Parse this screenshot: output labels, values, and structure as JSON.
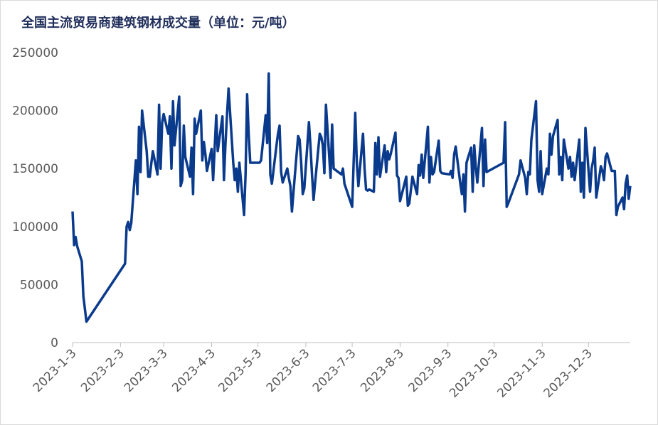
{
  "chart_data": {
    "type": "line",
    "title": "全国主流贸易商建筑钢材成交量（单位：元/吨）",
    "x": [
      "2023-1-3",
      "2023-1-4",
      "2023-1-5",
      "2023-1-6",
      "2023-1-9",
      "2023-1-10",
      "2023-1-12",
      "2023-2-6",
      "2023-2-7",
      "2023-2-8",
      "2023-2-9",
      "2023-2-10",
      "2023-2-13",
      "2023-2-14",
      "2023-2-15",
      "2023-2-16",
      "2023-2-17",
      "2023-2-20",
      "2023-2-21",
      "2023-2-22",
      "2023-2-23",
      "2023-2-24",
      "2023-2-27",
      "2023-2-28",
      "2023-3-1",
      "2023-3-2",
      "2023-3-3",
      "2023-3-6",
      "2023-3-7",
      "2023-3-8",
      "2023-3-9",
      "2023-3-10",
      "2023-3-13",
      "2023-3-14",
      "2023-3-15",
      "2023-3-16",
      "2023-3-17",
      "2023-3-20",
      "2023-3-21",
      "2023-3-22",
      "2023-3-23",
      "2023-3-24",
      "2023-3-27",
      "2023-3-28",
      "2023-3-29",
      "2023-3-30",
      "2023-3-31",
      "2023-4-3",
      "2023-4-4",
      "2023-4-6",
      "2023-4-7",
      "2023-4-10",
      "2023-4-11",
      "2023-4-12",
      "2023-4-13",
      "2023-4-14",
      "2023-4-17",
      "2023-4-18",
      "2023-4-19",
      "2023-4-20",
      "2023-4-21",
      "2023-4-24",
      "2023-4-25",
      "2023-4-26",
      "2023-4-27",
      "2023-4-28",
      "2023-5-4",
      "2023-5-5",
      "2023-5-8",
      "2023-5-9",
      "2023-5-10",
      "2023-5-11",
      "2023-5-12",
      "2023-5-15",
      "2023-5-16",
      "2023-5-17",
      "2023-5-18",
      "2023-5-19",
      "2023-5-22",
      "2023-5-23",
      "2023-5-24",
      "2023-5-25",
      "2023-5-26",
      "2023-5-29",
      "2023-5-30",
      "2023-5-31",
      "2023-6-1",
      "2023-6-2",
      "2023-6-5",
      "2023-6-6",
      "2023-6-7",
      "2023-6-8",
      "2023-6-9",
      "2023-6-12",
      "2023-6-13",
      "2023-6-14",
      "2023-6-15",
      "2023-6-16",
      "2023-6-19",
      "2023-6-20",
      "2023-6-21",
      "2023-6-26",
      "2023-6-27",
      "2023-6-28",
      "2023-7-3",
      "2023-7-5",
      "2023-7-6",
      "2023-7-7",
      "2023-7-10",
      "2023-7-11",
      "2023-7-12",
      "2023-7-13",
      "2023-7-14",
      "2023-7-17",
      "2023-7-18",
      "2023-7-19",
      "2023-7-20",
      "2023-7-21",
      "2023-7-24",
      "2023-7-25",
      "2023-7-26",
      "2023-7-27",
      "2023-7-28",
      "2023-7-31",
      "2023-8-1",
      "2023-8-2",
      "2023-8-3",
      "2023-8-7",
      "2023-8-8",
      "2023-8-9",
      "2023-8-11",
      "2023-8-14",
      "2023-8-15",
      "2023-8-16",
      "2023-8-17",
      "2023-8-18",
      "2023-8-21",
      "2023-8-22",
      "2023-8-23",
      "2023-8-24",
      "2023-8-25",
      "2023-8-28",
      "2023-8-29",
      "2023-8-30",
      "2023-9-4",
      "2023-9-5",
      "2023-9-6",
      "2023-9-7",
      "2023-9-8",
      "2023-9-11",
      "2023-9-12",
      "2023-9-13",
      "2023-9-14",
      "2023-9-15",
      "2023-9-18",
      "2023-9-19",
      "2023-9-20",
      "2023-9-21",
      "2023-9-22",
      "2023-9-25",
      "2023-9-26",
      "2023-9-27",
      "2023-9-28",
      "2023-10-9",
      "2023-10-10",
      "2023-10-11",
      "2023-10-12",
      "2023-10-19",
      "2023-10-20",
      "2023-10-23",
      "2023-10-24",
      "2023-10-25",
      "2023-10-26",
      "2023-10-27",
      "2023-10-30",
      "2023-10-31",
      "2023-11-1",
      "2023-11-2",
      "2023-11-3",
      "2023-11-6",
      "2023-11-7",
      "2023-11-8",
      "2023-11-9",
      "2023-11-10",
      "2023-11-13",
      "2023-11-14",
      "2023-11-15",
      "2023-11-16",
      "2023-11-17",
      "2023-11-20",
      "2023-11-21",
      "2023-11-22",
      "2023-11-23",
      "2023-11-24",
      "2023-11-27",
      "2023-11-28",
      "2023-11-29",
      "2023-11-30",
      "2023-12-1",
      "2023-12-4",
      "2023-12-5",
      "2023-12-6",
      "2023-12-7",
      "2023-12-8",
      "2023-12-11",
      "2023-12-12",
      "2023-12-13",
      "2023-12-14",
      "2023-12-15",
      "2023-12-18",
      "2023-12-19",
      "2023-12-20",
      "2023-12-21",
      "2023-12-22",
      "2023-12-25",
      "2023-12-26",
      "2023-12-27",
      "2023-12-28",
      "2023-12-29",
      "2023-12-30"
    ],
    "series": [
      {
        "name": "成交量",
        "color": "#0a3a8c",
        "values": [
          113000,
          84000,
          91000,
          83000,
          70000,
          40000,
          18000,
          68000,
          100000,
          104000,
          97000,
          103000,
          157000,
          128000,
          186000,
          147000,
          200000,
          165000,
          143000,
          143000,
          155000,
          165000,
          145000,
          205000,
          150000,
          190000,
          197000,
          180000,
          195000,
          150000,
          208000,
          170000,
          212000,
          135000,
          140000,
          187000,
          160000,
          143000,
          168000,
          128000,
          193000,
          180000,
          200000,
          157000,
          173000,
          162000,
          148000,
          167000,
          140000,
          196000,
          165000,
          195000,
          140000,
          172000,
          197000,
          219000,
          155000,
          140000,
          150000,
          130000,
          155000,
          110000,
          145000,
          214000,
          180000,
          155000,
          155000,
          157000,
          196000,
          172000,
          232000,
          145000,
          137000,
          170000,
          180000,
          187000,
          147000,
          138000,
          150000,
          142000,
          135000,
          113000,
          130000,
          178000,
          175000,
          155000,
          128000,
          133000,
          190000,
          170000,
          145000,
          123000,
          138000,
          180000,
          177000,
          170000,
          146000,
          205000,
          142000,
          188000,
          150000,
          145000,
          150000,
          137000,
          117000,
          198000,
          155000,
          135000,
          180000,
          150000,
          132000,
          131000,
          132000,
          130000,
          172000,
          145000,
          177000,
          143000,
          170000,
          147000,
          165000,
          158000,
          163000,
          181000,
          144000,
          142000,
          122000,
          143000,
          118000,
          120000,
          143000,
          128000,
          153000,
          144000,
          162000,
          142000,
          186000,
          138000,
          160000,
          145000,
          147000,
          174000,
          148000,
          146000,
          145000,
          148000,
          142000,
          162000,
          169000,
          137000,
          128000,
          145000,
          113000,
          155000,
          168000,
          130000,
          170000,
          152000,
          138000,
          185000,
          135000,
          175000,
          147000,
          155000,
          190000,
          117000,
          120000,
          145000,
          157000,
          142000,
          128000,
          147000,
          145000,
          175000,
          208000,
          140000,
          130000,
          165000,
          128000,
          150000,
          145000,
          180000,
          162000,
          178000,
          192000,
          145000,
          160000,
          140000,
          175000,
          150000,
          160000,
          143000,
          155000,
          140000,
          175000,
          130000,
          155000,
          125000,
          185000,
          130000,
          150000,
          157000,
          168000,
          125000,
          152000,
          148000,
          140000,
          160000,
          163000,
          148000,
          148000,
          148000,
          110000,
          117000,
          125000,
          115000,
          137000,
          144000,
          124000,
          135000
        ]
      }
    ],
    "xlim": [
      "2023-1-3",
      "2023-12-30"
    ],
    "xticks": [
      "2023-1-3",
      "2023-2-3",
      "2023-3-3",
      "2023-4-3",
      "2023-5-3",
      "2023-6-3",
      "2023-7-3",
      "2023-8-3",
      "2023-9-3",
      "2023-10-3",
      "2023-11-3",
      "2023-12-3"
    ],
    "ylim": [
      0,
      250000
    ],
    "yticks": [
      0,
      50000,
      100000,
      150000,
      200000,
      250000
    ],
    "grid": false
  }
}
